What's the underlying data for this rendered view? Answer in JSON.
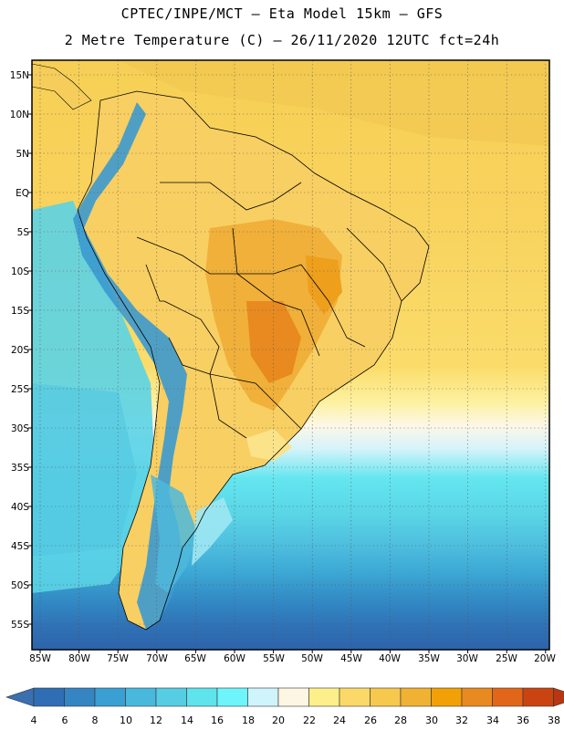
{
  "header": {
    "title_line1": "CPTEC/INPE/MCT  –   Eta Model 15km  –  GFS",
    "title_line2": "2 Metre Temperature (C) – 26/11/2020 12UTC fct=24h"
  },
  "map": {
    "lat_labels": [
      "15N",
      "10N",
      "5N",
      "EQ",
      "5S",
      "10S",
      "15S",
      "20S",
      "25S",
      "30S",
      "35S",
      "40S",
      "45S",
      "50S",
      "55S"
    ],
    "lon_labels": [
      "85W",
      "80W",
      "75W",
      "70W",
      "65W",
      "60W",
      "55W",
      "50W",
      "45W",
      "40W",
      "35W",
      "30W",
      "25W",
      "20W"
    ],
    "grid_style": "dotted"
  },
  "legend": {
    "labels": [
      "4",
      "6",
      "8",
      "10",
      "12",
      "14",
      "16",
      "18",
      "20",
      "22",
      "24",
      "26",
      "28",
      "30",
      "32",
      "34",
      "36",
      "38"
    ],
    "colors": [
      "#3a6fb0",
      "#2f6eb5",
      "#3485c2",
      "#3a9fd2",
      "#49b8dd",
      "#57cde3",
      "#5fe3ec",
      "#6df5fb",
      "#cff4fb",
      "#fdf6e3",
      "#fdf08a",
      "#fbd968",
      "#f6c84e",
      "#efb232",
      "#f1a106",
      "#e88a20",
      "#e1661a",
      "#c94410",
      "#b83612"
    ]
  }
}
